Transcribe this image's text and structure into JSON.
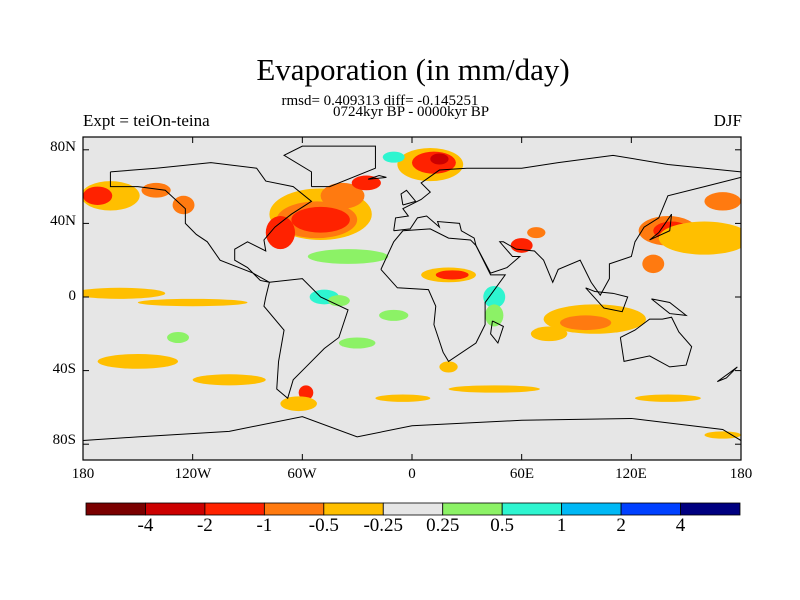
{
  "title": "Evaporation (in mm/day)",
  "stats": "rmsd= 0.409313 diff= -0.145251",
  "period": "0724kyr BP - 0000kyr BP",
  "experiment": "Expt = teiOn-teina",
  "season": "DJF",
  "chart_data": {
    "type": "heatmap",
    "title": "Evaporation (in mm/day)",
    "lat_ticks": [
      "80N",
      "40N",
      "0",
      "40S",
      "80S"
    ],
    "lat_values": [
      80,
      40,
      0,
      -40,
      -80
    ],
    "lon_ticks": [
      "180",
      "120W",
      "60W",
      "0",
      "60E",
      "120E",
      "180"
    ],
    "lon_values": [
      -180,
      -120,
      -60,
      0,
      60,
      120,
      180
    ],
    "colorbar": {
      "levels": [
        "-4",
        "-2",
        "-1",
        "-0.5",
        "-0.25",
        "0.25",
        "0.5",
        "1",
        "2",
        "4"
      ],
      "colors": [
        "#7a0000",
        "#cc0000",
        "#ff2200",
        "#ff7a10",
        "#ffbf00",
        "#e6e6e6",
        "#8cf266",
        "#2ef5d0",
        "#00b8f5",
        "#0040ff",
        "#000080"
      ]
    }
  }
}
